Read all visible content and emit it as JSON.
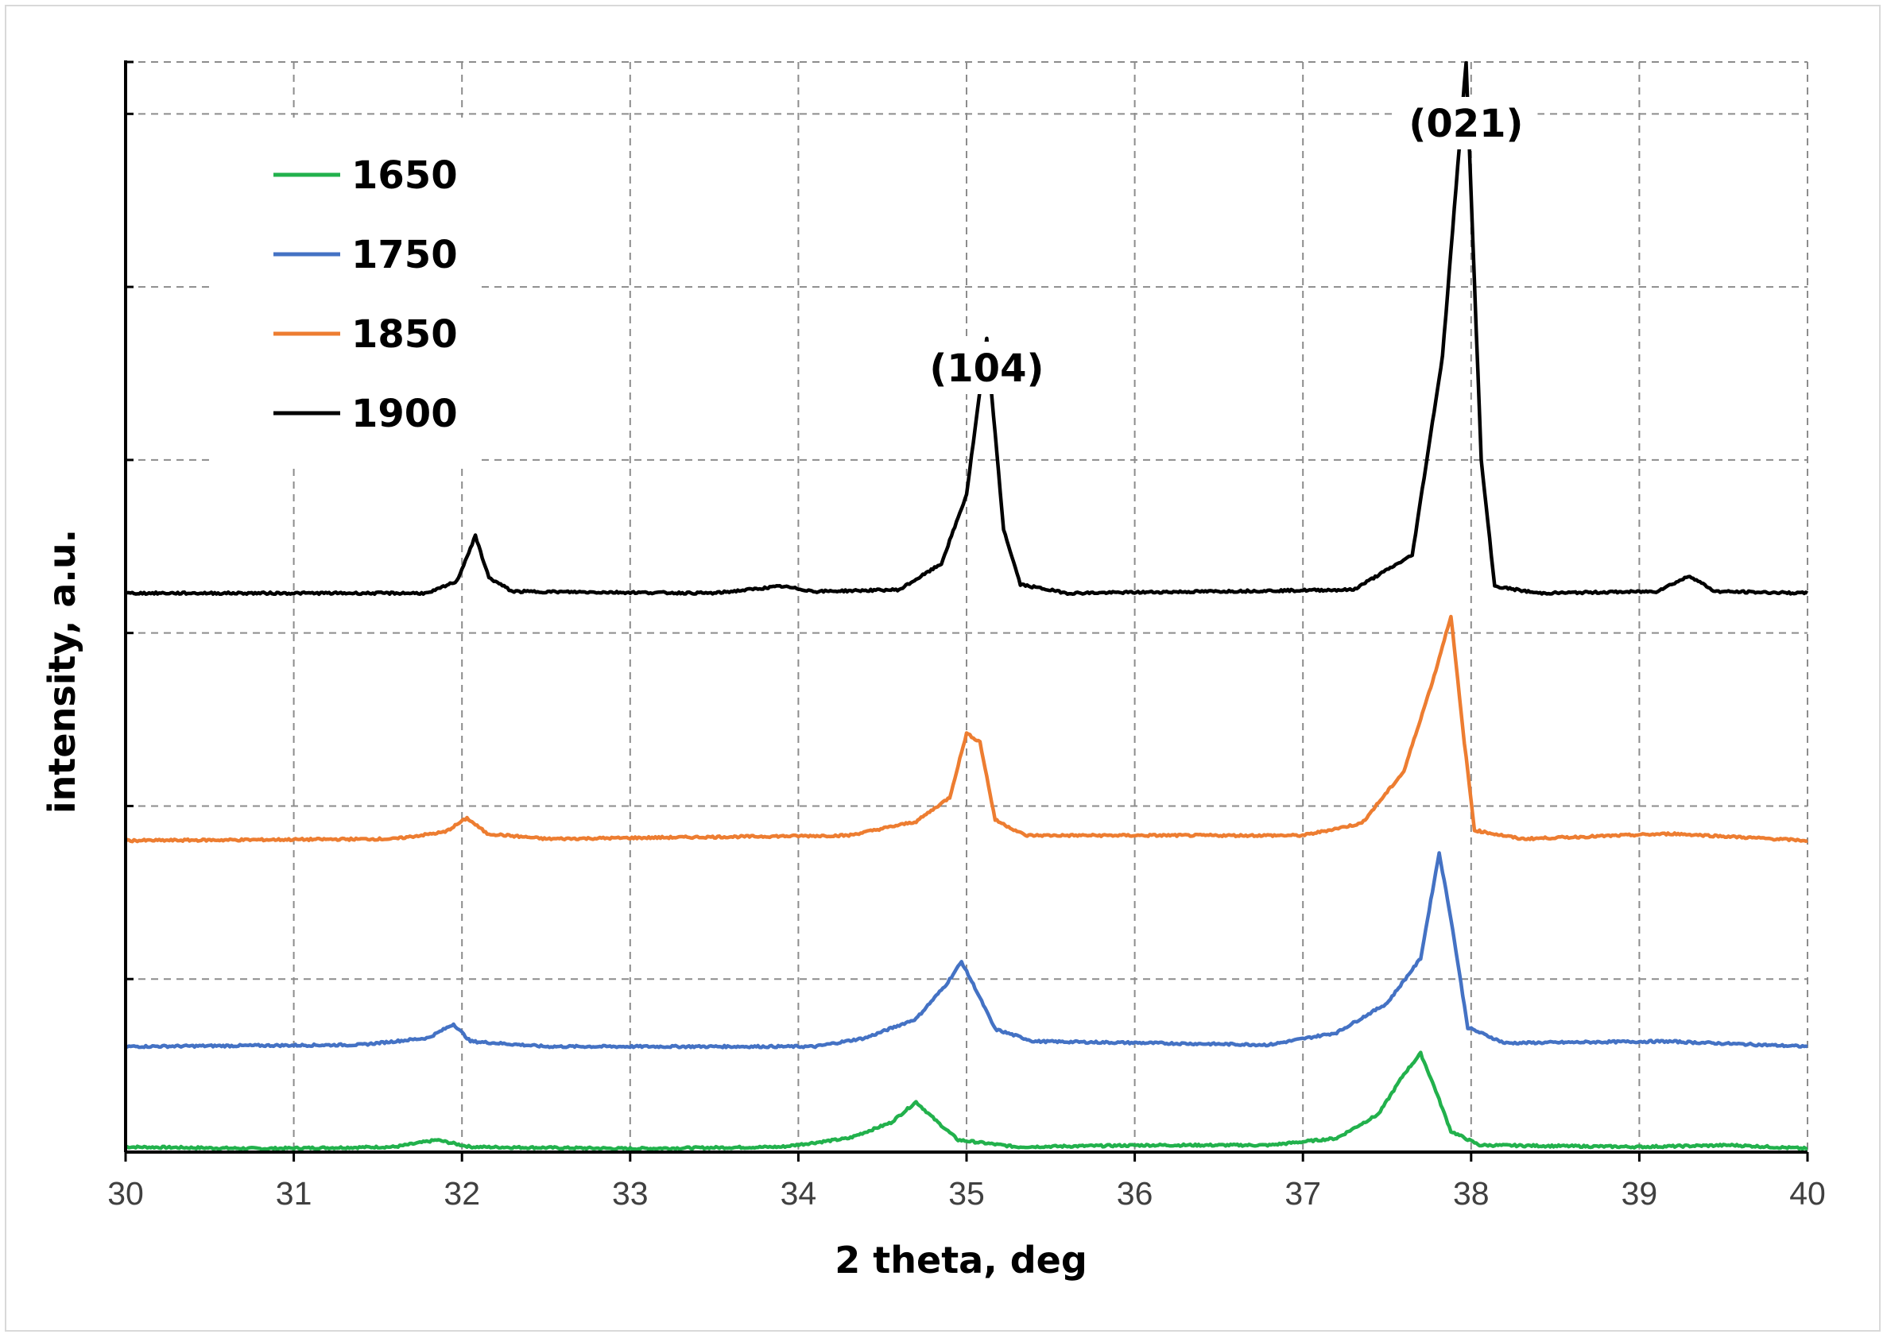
{
  "chart_data": {
    "type": "line",
    "title": "",
    "xlabel": "2 theta, deg",
    "ylabel": "intensity, a.u.",
    "xlim": [
      30,
      40
    ],
    "ylim": [
      0,
      6.3
    ],
    "x_ticks": [
      "30",
      "31",
      "32",
      "33",
      "34",
      "35",
      "36",
      "37",
      "38",
      "39",
      "40"
    ],
    "y_tick_labels_shown": false,
    "y_major_unit": 1,
    "grid": "dashed major gridlines on both axes",
    "legend_position": "top-left",
    "annotations": [
      {
        "text": "(104)",
        "x": 35.12,
        "y": 4.8
      },
      {
        "text": "(021)",
        "x": 37.97,
        "y": 6.5
      }
    ],
    "series": [
      {
        "name": "1650",
        "color": "#22b14c",
        "baseline": 0.02,
        "points": [
          [
            30,
            0.03
          ],
          [
            30.8,
            0.02
          ],
          [
            31.6,
            0.03
          ],
          [
            31.85,
            0.07
          ],
          [
            32.05,
            0.03
          ],
          [
            33,
            0.02
          ],
          [
            33.9,
            0.03
          ],
          [
            34.3,
            0.08
          ],
          [
            34.55,
            0.17
          ],
          [
            34.7,
            0.29
          ],
          [
            34.82,
            0.18
          ],
          [
            34.95,
            0.07
          ],
          [
            35.3,
            0.03
          ],
          [
            36.1,
            0.04
          ],
          [
            36.8,
            0.04
          ],
          [
            37.2,
            0.08
          ],
          [
            37.45,
            0.22
          ],
          [
            37.6,
            0.45
          ],
          [
            37.7,
            0.57
          ],
          [
            37.78,
            0.38
          ],
          [
            37.88,
            0.12
          ],
          [
            38.05,
            0.04
          ],
          [
            39,
            0.03
          ],
          [
            39.55,
            0.04
          ],
          [
            40,
            0.02
          ]
        ]
      },
      {
        "name": "1750",
        "color": "#4472c4",
        "baseline": 0.61,
        "points": [
          [
            30,
            0.61
          ],
          [
            31.4,
            0.62
          ],
          [
            31.8,
            0.66
          ],
          [
            31.95,
            0.74
          ],
          [
            32.05,
            0.64
          ],
          [
            32.5,
            0.61
          ],
          [
            34.1,
            0.61
          ],
          [
            34.4,
            0.66
          ],
          [
            34.7,
            0.77
          ],
          [
            34.88,
            0.97
          ],
          [
            34.97,
            1.1
          ],
          [
            35.05,
            0.95
          ],
          [
            35.17,
            0.71
          ],
          [
            35.4,
            0.64
          ],
          [
            36.8,
            0.62
          ],
          [
            37.2,
            0.69
          ],
          [
            37.5,
            0.86
          ],
          [
            37.7,
            1.12
          ],
          [
            37.81,
            1.73
          ],
          [
            37.88,
            1.35
          ],
          [
            37.98,
            0.72
          ],
          [
            38.2,
            0.63
          ],
          [
            39.15,
            0.64
          ],
          [
            40,
            0.61
          ]
        ]
      },
      {
        "name": "1850",
        "color": "#ed7d31",
        "baseline": 1.81,
        "points": [
          [
            30,
            1.8
          ],
          [
            31.6,
            1.81
          ],
          [
            31.9,
            1.85
          ],
          [
            32.03,
            1.93
          ],
          [
            32.15,
            1.84
          ],
          [
            32.5,
            1.81
          ],
          [
            34.3,
            1.83
          ],
          [
            34.7,
            1.91
          ],
          [
            34.9,
            2.05
          ],
          [
            35,
            2.42
          ],
          [
            35.08,
            2.37
          ],
          [
            35.17,
            1.92
          ],
          [
            35.35,
            1.83
          ],
          [
            37,
            1.83
          ],
          [
            37.35,
            1.9
          ],
          [
            37.6,
            2.2
          ],
          [
            37.78,
            2.75
          ],
          [
            37.88,
            3.1
          ],
          [
            37.95,
            2.45
          ],
          [
            38.02,
            1.86
          ],
          [
            38.3,
            1.81
          ],
          [
            39.2,
            1.84
          ],
          [
            40,
            1.8
          ]
        ]
      },
      {
        "name": "1900",
        "color": "#000000",
        "baseline": 3.23,
        "points": [
          [
            30,
            3.23
          ],
          [
            31.8,
            3.23
          ],
          [
            31.97,
            3.3
          ],
          [
            32.08,
            3.56
          ],
          [
            32.16,
            3.32
          ],
          [
            32.3,
            3.24
          ],
          [
            33.5,
            3.23
          ],
          [
            33.9,
            3.27
          ],
          [
            34.1,
            3.24
          ],
          [
            34.6,
            3.25
          ],
          [
            34.85,
            3.4
          ],
          [
            35.0,
            3.8
          ],
          [
            35.12,
            4.7
          ],
          [
            35.22,
            3.6
          ],
          [
            35.32,
            3.28
          ],
          [
            35.6,
            3.23
          ],
          [
            37.3,
            3.25
          ],
          [
            37.65,
            3.45
          ],
          [
            37.83,
            4.6
          ],
          [
            37.97,
            6.3
          ],
          [
            38.06,
            4.0
          ],
          [
            38.14,
            3.27
          ],
          [
            38.4,
            3.23
          ],
          [
            39.1,
            3.24
          ],
          [
            39.3,
            3.33
          ],
          [
            39.45,
            3.24
          ],
          [
            40,
            3.23
          ]
        ]
      }
    ]
  }
}
